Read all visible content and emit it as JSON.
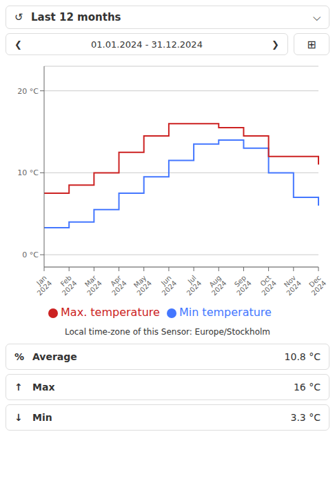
{
  "chart_data": {
    "type": "line",
    "title": "Last 12 months",
    "subtitle": "01.01.2024 - 31.12.2024",
    "categories": [
      "Jan\n2024",
      "Feb\n2024",
      "Mar\n2024",
      "Apr\n2024",
      "May\n2024",
      "Jun\n2024",
      "Jul\n2024",
      "Aug\n2024",
      "Sep\n2024",
      "Oct\n2024",
      "Nov\n2024",
      "Dec\n2024"
    ],
    "series": [
      {
        "name": "Min temperature",
        "color": "#4477ff",
        "line_style": "step",
        "values": [
          3.3,
          4.0,
          5.5,
          7.5,
          9.5,
          11.5,
          13.5,
          14.0,
          13.0,
          10.0,
          7.0,
          6.0
        ]
      },
      {
        "name": "Max. temperature",
        "color": "#cc2222",
        "line_style": "step",
        "values": [
          7.5,
          8.5,
          10.0,
          12.5,
          14.5,
          16.0,
          16.0,
          15.5,
          14.5,
          12.0,
          12.0,
          11.0
        ]
      }
    ],
    "ylim": [
      -1.5,
      23
    ],
    "yticks": [
      {
        "value": 0,
        "label": "0 °C"
      },
      {
        "value": 10,
        "label": "10 °C"
      },
      {
        "value": 20,
        "label": "20 °C"
      }
    ],
    "grid": true,
    "legend": "bottom",
    "annotations": [
      "↺",
      "⌵",
      "❮",
      "❯",
      "⊞",
      "Local time-zone of this Sensor: Europe/Stockholm",
      "%",
      "Average",
      "10.8 °C",
      "↑",
      "Max",
      "16 °C",
      "↓",
      "Min",
      "3.3 °C"
    ]
  }
}
